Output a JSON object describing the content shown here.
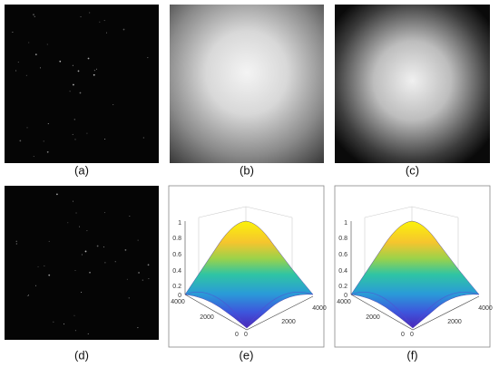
{
  "panels": [
    {
      "label": "(a)"
    },
    {
      "label": "(b)"
    },
    {
      "label": "(c)"
    },
    {
      "label": "(d)"
    },
    {
      "label": "(e)"
    },
    {
      "label": "(f)"
    }
  ],
  "surface_axes": {
    "z_ticks": [
      "0",
      "0.2",
      "0.4",
      "0.6",
      "0.8",
      "1"
    ],
    "left_ticks": [
      "0",
      "2000",
      "4000"
    ],
    "right_ticks": [
      "0",
      "2000",
      "4000"
    ]
  }
}
